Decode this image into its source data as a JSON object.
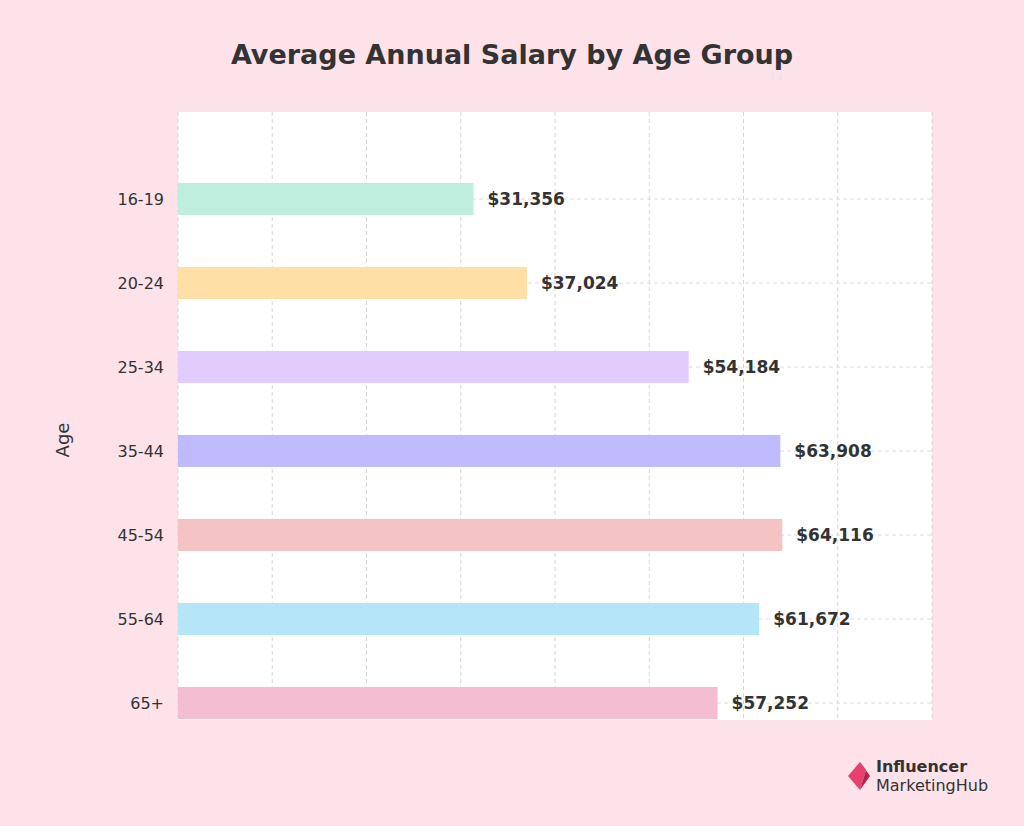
{
  "chart_data": {
    "type": "bar",
    "orientation": "horizontal",
    "title": "Average Annual Salary by Age Group",
    "y_label": "Age",
    "categories": [
      "16-19",
      "20-24",
      "25-34",
      "35-44",
      "45-54",
      "55-64",
      "65+"
    ],
    "values": [
      31356,
      37024,
      54184,
      63908,
      64116,
      61672,
      57252
    ],
    "value_labels": [
      "$31,356",
      "$37,024",
      "$54,184",
      "$63,908",
      "$64,116",
      "$61,672",
      "$57,252"
    ],
    "colors": [
      "#bfeedf",
      "#fedfa6",
      "#e2cbfd",
      "#bfbafc",
      "#f4c3c4",
      "#b4e6f8",
      "#f5bdd2"
    ],
    "xlim": [
      0,
      80000
    ],
    "xticks": [
      0,
      10000,
      20000,
      30000,
      40000,
      50000,
      60000,
      70000,
      80000
    ],
    "grid": true,
    "data_labels": true,
    "tick_labels": "y",
    "annotations": [
      "Influencer",
      "MarketingHub"
    ]
  }
}
